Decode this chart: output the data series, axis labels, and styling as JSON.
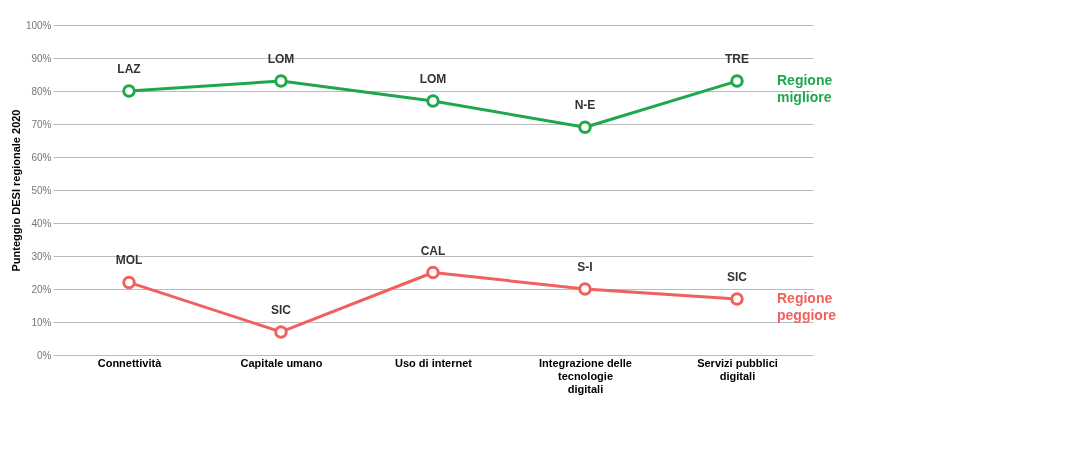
{
  "chart_data": {
    "type": "line",
    "ylabel": "Punteggio DESI regionale 2020",
    "categories": [
      "Connettività",
      "Capitale umano",
      "Uso di internet",
      "Integrazione delle tecnologie digitali",
      "Servizi pubblici digitali"
    ],
    "series": [
      {
        "name": "Regione migliore",
        "color": "#1fa84a",
        "values": [
          80,
          83,
          77,
          69,
          83
        ],
        "value_labels": [
          "LAZ",
          "LOM",
          "LOM",
          "N-E",
          "TRE"
        ]
      },
      {
        "name": "Regione peggiore",
        "color": "#f0605d",
        "values": [
          22,
          7,
          25,
          20,
          17
        ],
        "value_labels": [
          "MOL",
          "SIC",
          "CAL",
          "S-I",
          "SIC"
        ]
      }
    ],
    "ylim": [
      0,
      100
    ],
    "yticks": [
      {
        "value": 0,
        "label": "0%"
      },
      {
        "value": 10,
        "label": "10%"
      },
      {
        "value": 20,
        "label": "20%"
      },
      {
        "value": 30,
        "label": "30%"
      },
      {
        "value": 40,
        "label": "40%"
      },
      {
        "value": 50,
        "label": "50%"
      },
      {
        "value": 60,
        "label": "60%"
      },
      {
        "value": 70,
        "label": "70%"
      },
      {
        "value": 80,
        "label": "80%"
      },
      {
        "value": 90,
        "label": "90%"
      },
      {
        "value": 100,
        "label": "100%"
      }
    ],
    "grid": "y",
    "legend": "right",
    "marker": "circle",
    "line_style": "solid"
  }
}
